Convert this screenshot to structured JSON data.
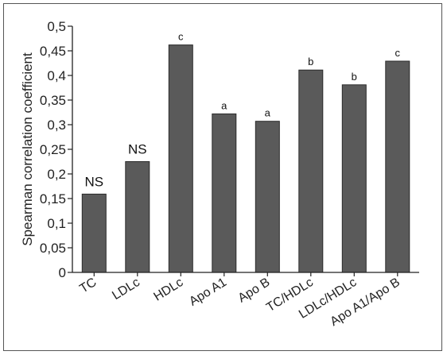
{
  "chart_data": {
    "type": "bar",
    "title": "",
    "xlabel": "",
    "ylabel": "Spearman correlation coefficient",
    "ylim": [
      0,
      0.5
    ],
    "yticks": [
      0,
      0.05,
      0.1,
      0.15,
      0.2,
      0.25,
      0.3,
      0.35,
      0.4,
      0.45,
      0.5
    ],
    "ytick_labels": [
      "0",
      "0,05",
      "0,1",
      "0,15",
      "0,2",
      "0,25",
      "0,3",
      "0,35",
      "0,4",
      "0,45",
      "0,5"
    ],
    "categories": [
      "TC",
      "LDLc",
      "HDLc",
      "Apo A1",
      "Apo B",
      "TC/HDLc",
      "LDLc/HDLc",
      "Apo A1/Apo B"
    ],
    "values": [
      0.159,
      0.225,
      0.462,
      0.322,
      0.307,
      0.411,
      0.381,
      0.429
    ],
    "annotations": [
      "NS",
      "NS",
      "c",
      "a",
      "a",
      "b",
      "b",
      "c"
    ],
    "grid": false,
    "legend": "none",
    "bar_color": "#5a5a5a"
  }
}
